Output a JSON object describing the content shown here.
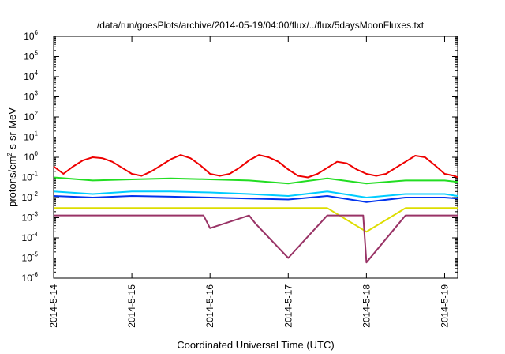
{
  "chart_data": {
    "type": "line",
    "title": "/data/run/goesPlots/archive/2014-05-19/04:00/flux/../flux/5daysMoonFluxes.txt",
    "xlabel": "Coordinated Universal Time (UTC)",
    "ylabel": {
      "pre": "protons/cm",
      "sup": "2",
      "post": "-s-sr-MeV"
    },
    "yscale": "log",
    "ylim": [
      1e-06,
      1000000.0
    ],
    "y_ticks": [
      {
        "value": 1e-06,
        "base": "10",
        "exp": "-6"
      },
      {
        "value": 1e-05,
        "base": "10",
        "exp": "-5"
      },
      {
        "value": 0.0001,
        "base": "10",
        "exp": "-4"
      },
      {
        "value": 0.001,
        "base": "10",
        "exp": "-3"
      },
      {
        "value": 0.01,
        "base": "10",
        "exp": "-2"
      },
      {
        "value": 0.1,
        "base": "10",
        "exp": "-1"
      },
      {
        "value": 1,
        "base": "10",
        "exp": "0"
      },
      {
        "value": 10.0,
        "base": "10",
        "exp": "1"
      },
      {
        "value": 100.0,
        "base": "10",
        "exp": "2"
      },
      {
        "value": 1000.0,
        "base": "10",
        "exp": "3"
      },
      {
        "value": 10000.0,
        "base": "10",
        "exp": "4"
      },
      {
        "value": 100000.0,
        "base": "10",
        "exp": "5"
      },
      {
        "value": 1000000.0,
        "base": "10",
        "exp": "6"
      }
    ],
    "xlim": [
      "2014-05-14T00:00",
      "2014-05-19T04:00"
    ],
    "x_ticks": [
      "2014-5-14",
      "2014-5-15",
      "2014-5-16",
      "2014-5-17",
      "2014-5-18",
      "2014-5-19"
    ],
    "grid": false,
    "legend": "none",
    "series": [
      {
        "color": "#ee0000",
        "x": [
          "2014-05-14T00:00",
          "2014-05-14T03:00",
          "2014-05-14T06:00",
          "2014-05-14T09:00",
          "2014-05-14T12:00",
          "2014-05-14T15:00",
          "2014-05-14T18:00",
          "2014-05-14T21:00",
          "2014-05-15T00:00",
          "2014-05-15T03:00",
          "2014-05-15T06:00",
          "2014-05-15T09:00",
          "2014-05-15T12:00",
          "2014-05-15T15:00",
          "2014-05-15T18:00",
          "2014-05-15T21:00",
          "2014-05-16T00:00",
          "2014-05-16T03:00",
          "2014-05-16T06:00",
          "2014-05-16T09:00",
          "2014-05-16T12:00",
          "2014-05-16T15:00",
          "2014-05-16T18:00",
          "2014-05-16T21:00",
          "2014-05-17T00:00",
          "2014-05-17T03:00",
          "2014-05-17T06:00",
          "2014-05-17T09:00",
          "2014-05-17T12:00",
          "2014-05-17T15:00",
          "2014-05-17T18:00",
          "2014-05-17T21:00",
          "2014-05-18T00:00",
          "2014-05-18T03:00",
          "2014-05-18T06:00",
          "2014-05-18T09:00",
          "2014-05-18T12:00",
          "2014-05-18T15:00",
          "2014-05-18T18:00",
          "2014-05-18T21:00",
          "2014-05-19T00:00",
          "2014-05-19T03:00",
          "2014-05-19T04:00"
        ],
        "values": [
          0.35,
          0.15,
          0.35,
          0.7,
          1.0,
          0.9,
          0.6,
          0.3,
          0.15,
          0.12,
          0.2,
          0.4,
          0.8,
          1.3,
          0.9,
          0.4,
          0.15,
          0.12,
          0.15,
          0.3,
          0.7,
          1.3,
          1.0,
          0.6,
          0.25,
          0.12,
          0.1,
          0.15,
          0.3,
          0.6,
          0.5,
          0.25,
          0.15,
          0.12,
          0.15,
          0.3,
          0.6,
          1.2,
          1.0,
          0.4,
          0.15,
          0.12,
          0.1
        ]
      },
      {
        "color": "#22dd22",
        "x": [
          "2014-05-14T00:00",
          "2014-05-14T12:00",
          "2014-05-15T00:00",
          "2014-05-15T12:00",
          "2014-05-16T00:00",
          "2014-05-16T12:00",
          "2014-05-17T00:00",
          "2014-05-17T12:00",
          "2014-05-18T00:00",
          "2014-05-18T12:00",
          "2014-05-19T00:00",
          "2014-05-19T04:00"
        ],
        "values": [
          0.1,
          0.07,
          0.08,
          0.09,
          0.08,
          0.07,
          0.05,
          0.09,
          0.05,
          0.07,
          0.07,
          0.06
        ]
      },
      {
        "color": "#00ccff",
        "x": [
          "2014-05-14T00:00",
          "2014-05-14T12:00",
          "2014-05-15T00:00",
          "2014-05-15T12:00",
          "2014-05-16T00:00",
          "2014-05-16T12:00",
          "2014-05-17T00:00",
          "2014-05-17T12:00",
          "2014-05-18T00:00",
          "2014-05-18T12:00",
          "2014-05-19T00:00",
          "2014-05-19T04:00"
        ],
        "values": [
          0.02,
          0.015,
          0.02,
          0.02,
          0.018,
          0.015,
          0.012,
          0.02,
          0.01,
          0.015,
          0.015,
          0.012
        ]
      },
      {
        "color": "#0033ee",
        "x": [
          "2014-05-14T00:00",
          "2014-05-14T12:00",
          "2014-05-15T00:00",
          "2014-05-15T12:00",
          "2014-05-16T00:00",
          "2014-05-16T12:00",
          "2014-05-17T00:00",
          "2014-05-17T12:00",
          "2014-05-18T00:00",
          "2014-05-18T12:00",
          "2014-05-19T00:00",
          "2014-05-19T04:00"
        ],
        "values": [
          0.012,
          0.01,
          0.012,
          0.011,
          0.01,
          0.009,
          0.008,
          0.012,
          0.006,
          0.01,
          0.01,
          0.009
        ]
      },
      {
        "color": "#dddd00",
        "x": [
          "2014-05-14T00:00",
          "2014-05-14T12:00",
          "2014-05-15T00:00",
          "2014-05-15T12:00",
          "2014-05-16T00:00",
          "2014-05-16T12:00",
          "2014-05-17T00:00",
          "2014-05-17T12:00",
          "2014-05-18T00:00",
          "2014-05-18T12:00",
          "2014-05-19T00:00",
          "2014-05-19T04:00"
        ],
        "values": [
          0.003,
          0.003,
          0.003,
          0.003,
          0.003,
          0.003,
          0.003,
          0.003,
          0.0002,
          0.003,
          0.003,
          0.003
        ]
      },
      {
        "color": "#993366",
        "x": [
          "2014-05-14T00:00",
          "2014-05-14T12:00",
          "2014-05-15T00:00",
          "2014-05-15T12:00",
          "2014-05-15T22:00",
          "2014-05-16T00:00",
          "2014-05-16T12:00",
          "2014-05-16T14:00",
          "2014-05-17T00:00",
          "2014-05-17T12:00",
          "2014-05-17T23:00",
          "2014-05-18T00:00",
          "2014-05-18T12:00",
          "2014-05-19T00:00",
          "2014-05-19T04:00"
        ],
        "values": [
          0.0013,
          0.0013,
          0.0013,
          0.0013,
          0.0013,
          0.0003,
          0.0013,
          0.0005,
          1e-05,
          0.0013,
          0.0013,
          6e-06,
          0.0013,
          0.0013,
          0.0013
        ]
      }
    ]
  }
}
